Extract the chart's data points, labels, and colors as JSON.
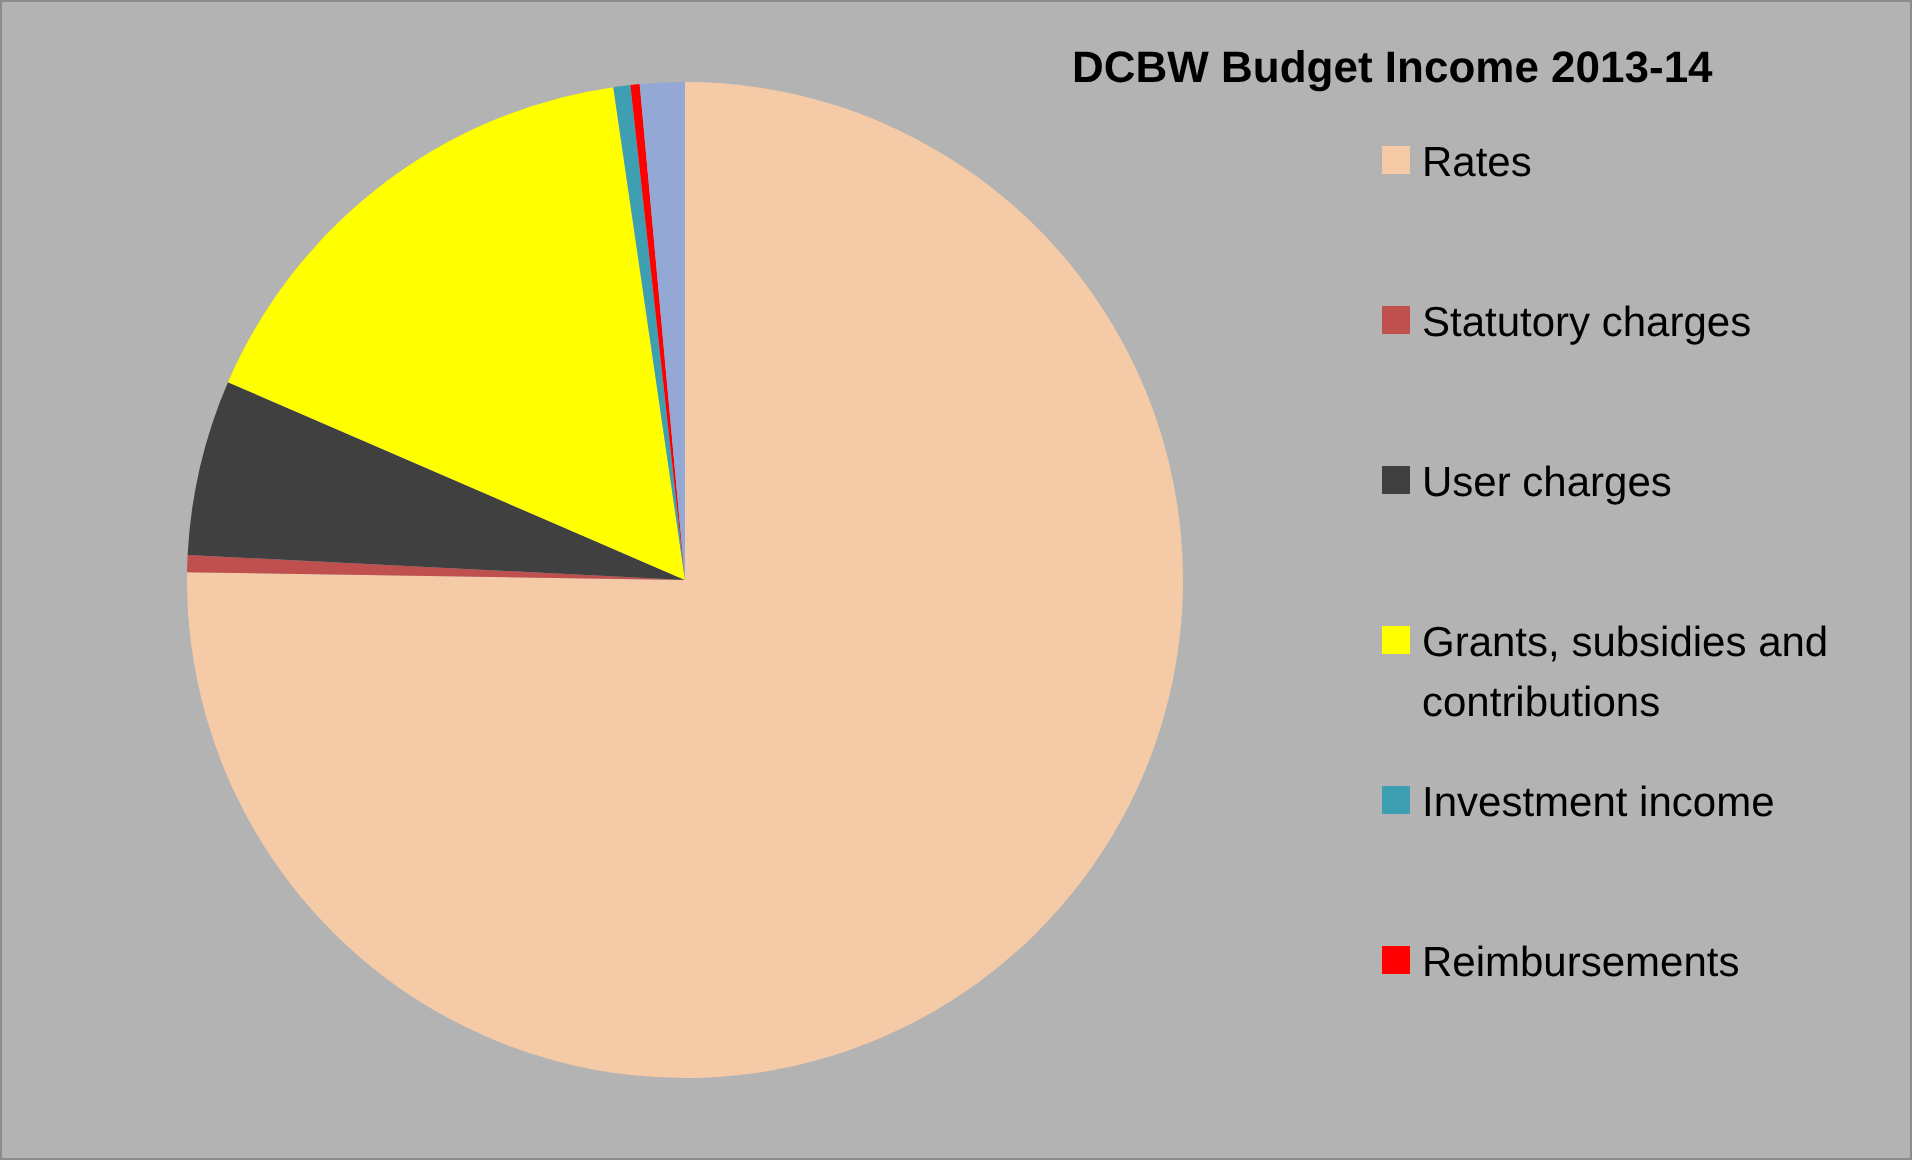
{
  "chart_data": {
    "type": "pie",
    "title": "DCBW Budget Income 2013-14",
    "categories": [
      "Rates",
      "Statutory charges",
      "User charges",
      "Grants, subsidies and contributions",
      "Investment income",
      "Reimbursements",
      null
    ],
    "values": [
      75.25,
      0.55,
      5.7,
      16.2,
      0.55,
      0.3,
      1.45
    ],
    "colors": [
      "#f5cba7",
      "#c0504d",
      "#404040",
      "#ffff00",
      "#3f9fb2",
      "#ff0000",
      "#94a8d6"
    ],
    "legend": "right"
  }
}
